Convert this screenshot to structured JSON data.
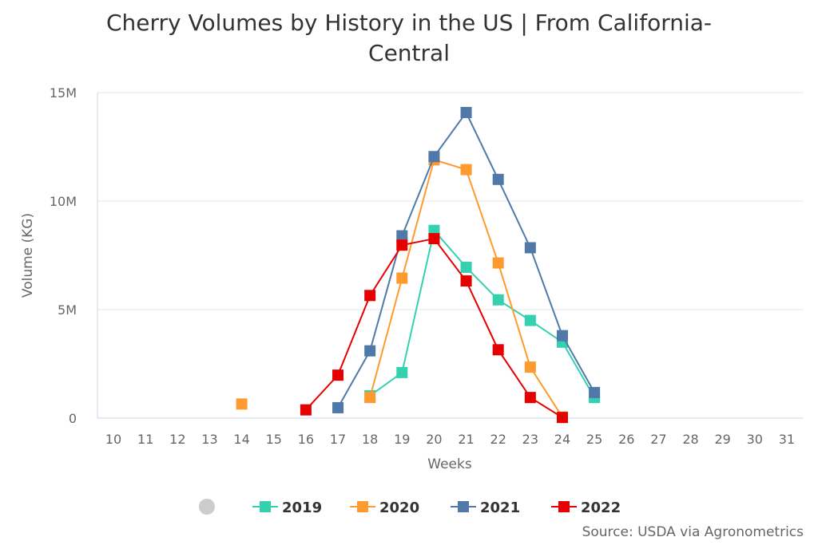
{
  "chart_data": {
    "type": "line",
    "title_lines": [
      "Cherry Volumes by History in the US | From California-",
      "Central"
    ],
    "xlabel": "Weeks",
    "ylabel": "Volume (KG)",
    "x": [
      10,
      11,
      12,
      13,
      14,
      15,
      16,
      17,
      18,
      19,
      20,
      21,
      22,
      23,
      24,
      25,
      26,
      27,
      28,
      29,
      30,
      31
    ],
    "ylim": [
      0,
      15000000
    ],
    "yticks": [
      0,
      5000000,
      10000000,
      15000000
    ],
    "ytick_labels": [
      "0",
      "5M",
      "10M",
      "15M"
    ],
    "grid": true,
    "legend_placement": "bottom",
    "series": [
      {
        "name": "2019",
        "color": "#33d1b0",
        "points": [
          [
            18,
            1030000
          ],
          [
            19,
            2100000
          ],
          [
            20,
            8650000
          ],
          [
            21,
            6950000
          ],
          [
            22,
            5450000
          ],
          [
            23,
            4500000
          ],
          [
            24,
            3500000
          ],
          [
            25,
            950000
          ]
        ]
      },
      {
        "name": "2020",
        "color": "#ff9a2e",
        "points": [
          [
            14,
            650000
          ],
          [
            18,
            950000
          ],
          [
            19,
            6450000
          ],
          [
            20,
            11900000
          ],
          [
            21,
            11450000
          ],
          [
            22,
            7150000
          ],
          [
            23,
            2350000
          ],
          [
            24,
            50000
          ]
        ]
      },
      {
        "name": "2021",
        "color": "#5079aa",
        "points": [
          [
            17,
            480000
          ],
          [
            18,
            3100000
          ],
          [
            19,
            8400000
          ],
          [
            20,
            12050000
          ],
          [
            21,
            14080000
          ],
          [
            22,
            11000000
          ],
          [
            23,
            7850000
          ],
          [
            24,
            3800000
          ],
          [
            25,
            1180000
          ]
        ]
      },
      {
        "name": "2022",
        "color": "#e60000",
        "points": [
          [
            16,
            380000
          ],
          [
            17,
            1980000
          ],
          [
            18,
            5650000
          ],
          [
            19,
            7970000
          ],
          [
            20,
            8270000
          ],
          [
            21,
            6320000
          ],
          [
            22,
            3150000
          ],
          [
            23,
            950000
          ],
          [
            24,
            30000
          ]
        ]
      }
    ],
    "source": "Source: USDA via Agronometrics"
  }
}
